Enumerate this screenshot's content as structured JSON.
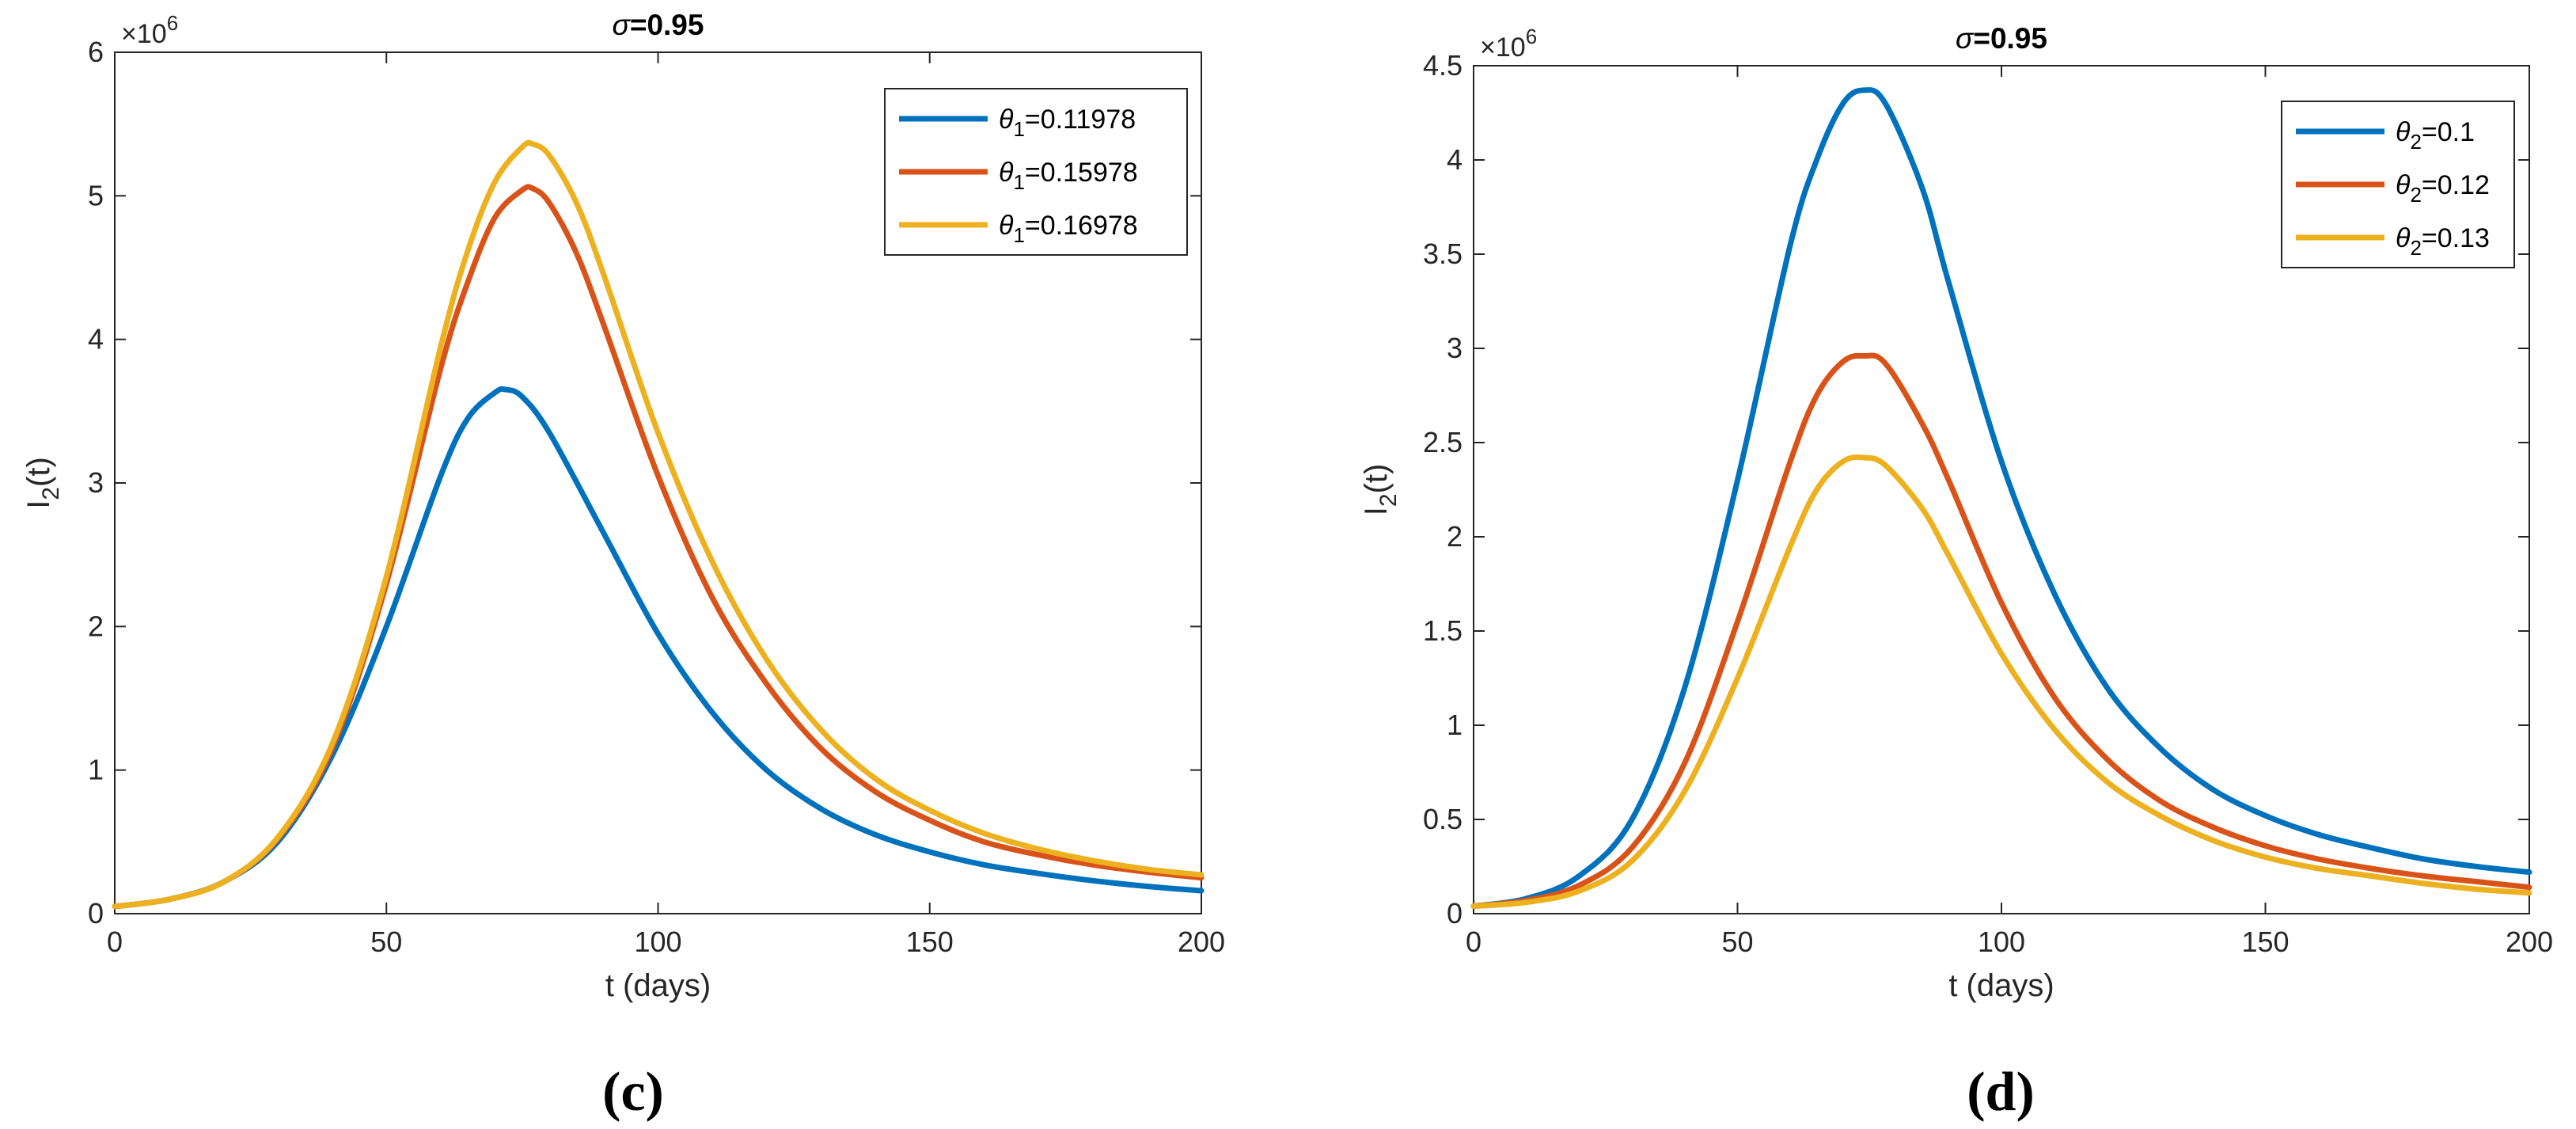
{
  "chart_data": [
    {
      "panel": "(c)",
      "type": "line",
      "title_symbol": "σ",
      "title_value": "=0.95",
      "xlabel": "t (days)",
      "ylabel_main": "I",
      "ylabel_sub": "2",
      "ylabel_tail": "(t)",
      "exponent_prefix": "×10",
      "exponent_power": "6",
      "xlim": [
        0,
        200
      ],
      "ylim": [
        0,
        6
      ],
      "xticks": [
        0,
        50,
        100,
        150,
        200
      ],
      "yticks": [
        0,
        1,
        2,
        3,
        4,
        5,
        6
      ],
      "ytick_labels": [
        "0",
        "1",
        "2",
        "3",
        "4",
        "5",
        "6"
      ],
      "legend_location": "top-right",
      "series": [
        {
          "name": "θ1=0.11978",
          "param_symbol": "θ",
          "param_sub": "1",
          "param_value": "=0.11978",
          "color": "#0072BD",
          "x": [
            0,
            10,
            20,
            30,
            40,
            50,
            60,
            65,
            70,
            72,
            75,
            80,
            90,
            100,
            110,
            120,
            130,
            140,
            150,
            160,
            170,
            180,
            190,
            200
          ],
          "y": [
            0.05,
            0.1,
            0.22,
            0.5,
            1.1,
            2.0,
            3.05,
            3.45,
            3.63,
            3.65,
            3.6,
            3.35,
            2.65,
            1.95,
            1.4,
            1.0,
            0.73,
            0.55,
            0.43,
            0.34,
            0.28,
            0.23,
            0.19,
            0.16
          ]
        },
        {
          "name": "θ1=0.15978",
          "param_symbol": "θ",
          "param_sub": "1",
          "param_value": "=0.15978",
          "color": "#D95319",
          "x": [
            0,
            10,
            20,
            30,
            40,
            50,
            60,
            65,
            70,
            75,
            77,
            80,
            85,
            90,
            100,
            110,
            120,
            130,
            140,
            150,
            160,
            170,
            180,
            190,
            200
          ],
          "y": [
            0.05,
            0.1,
            0.22,
            0.52,
            1.15,
            2.3,
            3.8,
            4.4,
            4.85,
            5.04,
            5.05,
            4.95,
            4.6,
            4.1,
            3.05,
            2.2,
            1.6,
            1.15,
            0.85,
            0.65,
            0.5,
            0.41,
            0.34,
            0.29,
            0.25
          ]
        },
        {
          "name": "θ1=0.16978",
          "param_symbol": "θ",
          "param_sub": "1",
          "param_value": "=0.16978",
          "color": "#EDB120",
          "x": [
            0,
            10,
            20,
            30,
            40,
            50,
            60,
            65,
            70,
            75,
            77,
            80,
            85,
            90,
            100,
            110,
            120,
            130,
            140,
            150,
            160,
            170,
            180,
            190,
            200
          ],
          "y": [
            0.05,
            0.1,
            0.22,
            0.53,
            1.18,
            2.35,
            3.95,
            4.62,
            5.1,
            5.34,
            5.36,
            5.28,
            4.95,
            4.45,
            3.35,
            2.45,
            1.77,
            1.28,
            0.94,
            0.72,
            0.56,
            0.45,
            0.37,
            0.31,
            0.27
          ]
        }
      ]
    },
    {
      "panel": "(d)",
      "type": "line",
      "title_symbol": "σ",
      "title_value": "=0.95",
      "xlabel": "t (days)",
      "ylabel_main": "I",
      "ylabel_sub": "2",
      "ylabel_tail": "(t)",
      "exponent_prefix": "×10",
      "exponent_power": "6",
      "xlim": [
        0,
        200
      ],
      "ylim": [
        0,
        4.5
      ],
      "xticks": [
        0,
        50,
        100,
        150,
        200
      ],
      "yticks": [
        0,
        0.5,
        1,
        1.5,
        2,
        2.5,
        3,
        3.5,
        4,
        4.5
      ],
      "ytick_labels": [
        "0",
        "0.5",
        "1",
        "1.5",
        "2",
        "2.5",
        "3",
        "3.5",
        "4",
        "4.5"
      ],
      "legend_location": "top-right",
      "series": [
        {
          "name": "θ2=0.1",
          "param_symbol": "θ",
          "param_sub": "2",
          "param_value": "=0.1",
          "color": "#0072BD",
          "x": [
            0,
            10,
            20,
            30,
            40,
            50,
            60,
            65,
            70,
            74,
            78,
            85,
            90,
            100,
            110,
            120,
            130,
            140,
            150,
            160,
            170,
            180,
            190,
            200
          ],
          "y": [
            0.04,
            0.08,
            0.2,
            0.5,
            1.2,
            2.3,
            3.55,
            4.0,
            4.3,
            4.37,
            4.3,
            3.85,
            3.35,
            2.4,
            1.7,
            1.2,
            0.88,
            0.66,
            0.52,
            0.42,
            0.35,
            0.29,
            0.25,
            0.22
          ]
        },
        {
          "name": "θ2=0.12",
          "param_symbol": "θ",
          "param_sub": "2",
          "param_value": "=0.12",
          "color": "#D95319",
          "x": [
            0,
            10,
            20,
            30,
            40,
            50,
            60,
            65,
            70,
            74,
            78,
            85,
            90,
            100,
            110,
            120,
            130,
            140,
            150,
            160,
            170,
            180,
            190,
            200
          ],
          "y": [
            0.04,
            0.07,
            0.15,
            0.35,
            0.8,
            1.55,
            2.4,
            2.75,
            2.93,
            2.96,
            2.92,
            2.6,
            2.3,
            1.65,
            1.15,
            0.82,
            0.6,
            0.46,
            0.36,
            0.29,
            0.24,
            0.2,
            0.17,
            0.14
          ]
        },
        {
          "name": "θ2=0.13",
          "param_symbol": "θ",
          "param_sub": "2",
          "param_value": "=0.13",
          "color": "#EDB120",
          "x": [
            0,
            10,
            20,
            30,
            40,
            50,
            60,
            65,
            70,
            74,
            78,
            85,
            90,
            100,
            110,
            120,
            130,
            140,
            150,
            160,
            170,
            180,
            190,
            200
          ],
          "y": [
            0.04,
            0.06,
            0.12,
            0.28,
            0.65,
            1.25,
            1.95,
            2.25,
            2.4,
            2.42,
            2.38,
            2.15,
            1.9,
            1.38,
            0.98,
            0.7,
            0.52,
            0.39,
            0.3,
            0.24,
            0.2,
            0.16,
            0.13,
            0.11
          ]
        }
      ]
    }
  ]
}
